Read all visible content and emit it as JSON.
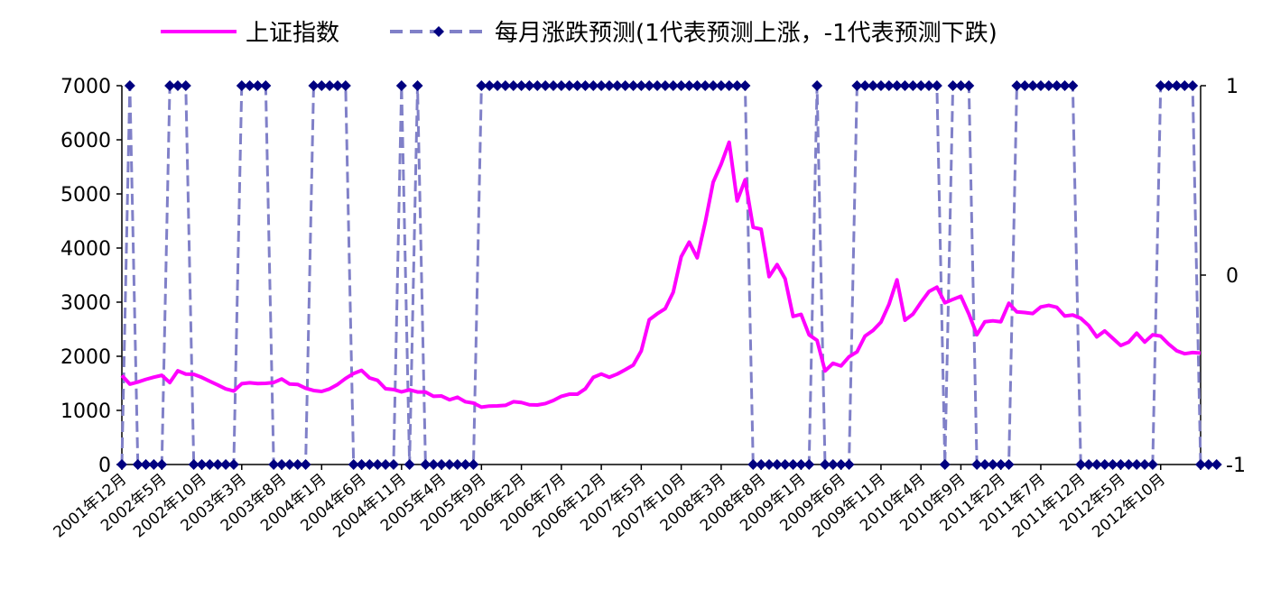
{
  "chart_data": {
    "type": "line",
    "legend": {
      "placement": "top",
      "items": [
        {
          "label": "上证指数",
          "color": "#FF00FF",
          "style": "solid"
        },
        {
          "label": "每月涨跌预测(1代表预测上涨，-1代表预测下跌)",
          "color": "#8080C8",
          "marker_color": "#000080",
          "style": "dashed-diamond"
        }
      ]
    },
    "left_axis": {
      "ylim": [
        0,
        7000
      ],
      "ticks": [
        "0",
        "1000",
        "2000",
        "3000",
        "4000",
        "5000",
        "6000",
        "7000"
      ]
    },
    "right_axis": {
      "ylim": [
        -1,
        1
      ],
      "ticks": [
        "-1",
        "0",
        "1"
      ]
    },
    "x_tick_labels": [
      "2001年12月",
      "2002年5月",
      "2002年10月",
      "2003年3月",
      "2003年8月",
      "2004年1月",
      "2004年6月",
      "2004年11月",
      "2005年4月",
      "2005年9月",
      "2006年2月",
      "2006年7月",
      "2006年12月",
      "2007年5月",
      "2007年10月",
      "2008年3月",
      "2008年8月",
      "2009年1月",
      "2009年6月",
      "2009年11月",
      "2010年4月",
      "2010年9月",
      "2011年2月",
      "2011年7月",
      "2011年12月",
      "2012年5月",
      "2012年10月"
    ],
    "x_start": "2001年12月",
    "series": [
      {
        "name": "上证指数",
        "axis": "left",
        "values": [
          1646,
          1485,
          1524,
          1573,
          1613,
          1648,
          1515,
          1732,
          1671,
          1667,
          1610,
          1538,
          1470,
          1397,
          1358,
          1493,
          1510,
          1495,
          1500,
          1515,
          1581,
          1487,
          1480,
          1410,
          1367,
          1350,
          1397,
          1480,
          1591,
          1682,
          1739,
          1600,
          1555,
          1400,
          1386,
          1342,
          1380,
          1340,
          1339,
          1261,
          1266,
          1196,
          1243,
          1159,
          1135,
          1060,
          1080,
          1083,
          1093,
          1160,
          1146,
          1104,
          1100,
          1126,
          1183,
          1260,
          1299,
          1299,
          1399,
          1611,
          1672,
          1612,
          1672,
          1752,
          1837,
          2100,
          2675,
          2786,
          2881,
          3184,
          3841,
          4109,
          3820,
          4471,
          5218,
          5552,
          5955,
          4871,
          5261,
          4383,
          4348,
          3472,
          3693,
          3433,
          2736,
          2775,
          2397,
          2293,
          1729,
          1871,
          1821,
          1991,
          2082,
          2373,
          2477,
          2632,
          2959,
          3412,
          2667,
          2779,
          2996,
          3195,
          3277,
          2989,
          3051,
          3109,
          2781,
          2398,
          2638,
          2655,
          2638,
          2979,
          2820,
          2808,
          2790,
          2911,
          2941,
          2905,
          2743,
          2762,
          2702,
          2568,
          2359,
          2468,
          2333,
          2199,
          2262,
          2428,
          2263,
          2397,
          2373,
          2225,
          2103,
          2047,
          2069,
          2059
        ]
      },
      {
        "name": "每月涨跌预测(1代表预测上涨，-1代表预测下跌)",
        "axis": "right",
        "values": [
          -1,
          1,
          -1,
          -1,
          -1,
          -1,
          1,
          1,
          1,
          -1,
          -1,
          -1,
          -1,
          -1,
          -1,
          1,
          1,
          1,
          1,
          -1,
          -1,
          -1,
          -1,
          -1,
          1,
          1,
          1,
          1,
          1,
          -1,
          -1,
          -1,
          -1,
          -1,
          -1,
          1,
          -1,
          1,
          -1,
          -1,
          -1,
          -1,
          -1,
          -1,
          -1,
          1,
          1,
          1,
          1,
          1,
          1,
          1,
          1,
          1,
          1,
          1,
          1,
          1,
          1,
          1,
          1,
          1,
          1,
          1,
          1,
          1,
          1,
          1,
          1,
          1,
          1,
          1,
          1,
          1,
          1,
          1,
          1,
          1,
          1,
          -1,
          -1,
          -1,
          -1,
          -1,
          -1,
          -1,
          -1,
          1,
          -1,
          -1,
          -1,
          -1,
          1,
          1,
          1,
          1,
          1,
          1,
          1,
          1,
          1,
          1,
          1,
          -1,
          1,
          1,
          1,
          -1,
          -1,
          -1,
          -1,
          -1,
          1,
          1,
          1,
          1,
          1,
          1,
          1,
          1,
          -1,
          -1,
          -1,
          -1,
          -1,
          -1,
          -1,
          -1,
          -1,
          -1,
          1,
          1,
          1,
          1,
          1,
          -1,
          -1,
          -1
        ]
      }
    ]
  }
}
